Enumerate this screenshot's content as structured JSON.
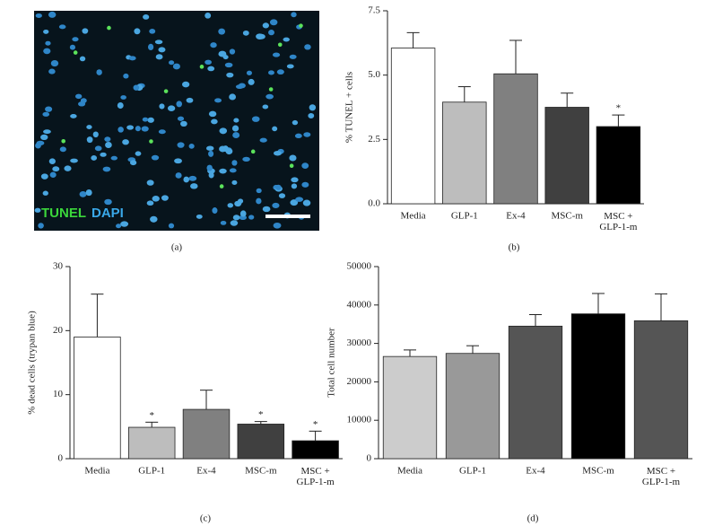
{
  "panel_a": {
    "labels": [
      "TUNEL",
      "DAPI"
    ],
    "caption": "(a)"
  },
  "chart_data": [
    {
      "type": "bar",
      "caption": "(b)",
      "y_label": "% TUNEL + cells",
      "categories": [
        "Media",
        "GLP-1",
        "Ex-4",
        "MSC-m",
        "MSC +\nGLP-1-m"
      ],
      "values": [
        6.05,
        3.95,
        5.05,
        3.75,
        3.0
      ],
      "errors": [
        0.6,
        0.6,
        1.3,
        0.55,
        0.45
      ],
      "colors": [
        "#ffffff",
        "#bdbdbd",
        "#808080",
        "#404040",
        "#000000"
      ],
      "significance": [
        null,
        null,
        null,
        null,
        "*"
      ],
      "ylim": [
        0,
        7.5
      ],
      "yticks": [
        {
          "value": 0,
          "label": "0.0"
        },
        2.5,
        {
          "value": 5,
          "label": "5.0"
        },
        7.5
      ]
    },
    {
      "type": "bar",
      "caption": "(c)",
      "y_label": "% dead cells (trypan blue)",
      "categories": [
        "Media",
        "GLP-1",
        "Ex-4",
        "MSC-m",
        "MSC +\nGLP-1-m"
      ],
      "values": [
        19,
        4.9,
        7.7,
        5.4,
        2.8
      ],
      "errors": [
        6.7,
        0.8,
        3.0,
        0.4,
        1.5
      ],
      "colors": [
        "#ffffff",
        "#bdbdbd",
        "#808080",
        "#404040",
        "#000000"
      ],
      "significance": [
        null,
        "*",
        null,
        "*",
        "*"
      ],
      "ylim": [
        0,
        30
      ],
      "yticks": [
        0,
        10,
        20,
        30
      ]
    },
    {
      "type": "bar",
      "caption": "(d)",
      "y_label": "Total cell number",
      "categories": [
        "Media",
        "GLP-1",
        "Ex-4",
        "MSC-m",
        "MSC +\nGLP-1-m"
      ],
      "values": [
        26600,
        27400,
        34500,
        37700,
        35900
      ],
      "errors": [
        1700,
        2000,
        3000,
        5300,
        7000
      ],
      "colors": [
        "#cccccc",
        "#999999",
        "#555555",
        "#000000",
        "#555555"
      ],
      "ylim": [
        0,
        50000
      ],
      "yticks": [
        0,
        10000,
        20000,
        30000,
        40000,
        50000
      ]
    }
  ]
}
